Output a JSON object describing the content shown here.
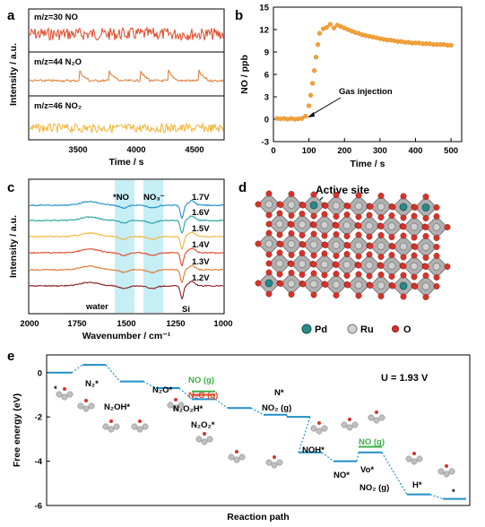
{
  "panels": {
    "a": {
      "letter": "a",
      "ylabel": "Intensity / a.u.",
      "xlabel": "Time / s",
      "xticks": [
        "3500",
        "4000",
        "4500"
      ],
      "traces": [
        {
          "label": "m/z=30 NO",
          "color": "#e04a2a"
        },
        {
          "label": "m/z=44 N₂O",
          "color": "#e07830"
        },
        {
          "label": "m/z=46 NO₂",
          "color": "#f0b43a"
        }
      ]
    },
    "b": {
      "letter": "b",
      "ylabel": "NO / ppb",
      "xlabel": "Time / s",
      "annotation": "Gas injection"
    },
    "c": {
      "letter": "c",
      "ylabel": "Intensity / a.u.",
      "xlabel": "Wavenumber / cm⁻¹",
      "band_labels": [
        "*NO",
        "NO₃⁻",
        "water",
        "Si"
      ],
      "xticks": [
        "2000",
        "1750",
        "1500",
        "1250",
        "1000"
      ]
    },
    "d": {
      "letter": "d",
      "title": "Active site",
      "legend": [
        {
          "label": "Pd",
          "color": "#2a8a8a"
        },
        {
          "label": "Ru",
          "color": "#c8c8c8"
        },
        {
          "label": "O",
          "color": "#d8332a"
        }
      ]
    },
    "e": {
      "letter": "e",
      "ylabel": "Free energy (eV)",
      "xlabel": "Reaction path",
      "potential": "U = 1.93 V",
      "yticks": [
        "0",
        "-2",
        "-4",
        "-6"
      ],
      "labels": {
        "star": "*",
        "n2": "N₂*",
        "n2oh": "N₂OH*",
        "n2o": "N₂O*",
        "n2o2h": "N₂O₂H*",
        "n2o2": "N₂O₂*",
        "no_g1": "NO (g)",
        "n2o_g": "N₂O (g)",
        "n_star": "N*",
        "no2_g1": "NO₂ (g)",
        "noh": "NOH*",
        "no_star": "NO*",
        "no_g2": "NO (g)",
        "vo": "Vo*",
        "no2_g2": "NO₂ (g)",
        "h_star": "H*",
        "end_star": "*"
      },
      "colors": {
        "main": "#1f8fc8",
        "green": "#3cb04a",
        "red": "#e0452a"
      }
    }
  },
  "chart_data": [
    {
      "panel": "a",
      "type": "line",
      "title": "",
      "xlabel": "Time / s",
      "ylabel": "Intensity / a.u.",
      "xlim": [
        3050,
        4800
      ],
      "series": [
        {
          "name": "m/z=30 NO",
          "description_values": "noisy flat baseline",
          "x": [
            3050,
            4800
          ],
          "y": [
            1,
            1
          ]
        },
        {
          "name": "m/z=44 N₂O",
          "x": [
            3520,
            3800,
            4080,
            4330,
            4600
          ],
          "y": [
            1,
            1,
            1,
            1,
            1
          ]
        },
        {
          "name": "m/z=46 NO₂",
          "x": [
            3050,
            4800
          ],
          "y": [
            1,
            1
          ]
        }
      ]
    },
    {
      "panel": "b",
      "type": "scatter",
      "xlabel": "Time / s",
      "ylabel": "NO / ppb",
      "xlim": [
        0,
        530
      ],
      "ylim": [
        -3,
        15
      ],
      "xticks": [
        0,
        100,
        200,
        300,
        400,
        500
      ],
      "yticks": [
        -3,
        0,
        3,
        6,
        9,
        12,
        15
      ],
      "series": [
        {
          "name": "",
          "x": [
            10,
            20,
            30,
            40,
            50,
            60,
            70,
            80,
            90,
            100,
            105,
            110,
            115,
            120,
            125,
            130,
            140,
            150,
            160,
            170,
            180,
            190,
            200,
            210,
            220,
            230,
            240,
            250,
            260,
            270,
            280,
            290,
            300,
            310,
            320,
            330,
            340,
            350,
            360,
            370,
            380,
            390,
            400,
            410,
            420,
            430,
            440,
            450,
            460,
            470,
            480,
            490,
            500
          ],
          "y": [
            0.1,
            0.05,
            0.1,
            0.0,
            0.1,
            0.0,
            0.05,
            0.1,
            0.4,
            1.8,
            3.2,
            4.8,
            6.5,
            8.3,
            10.0,
            11.5,
            12.1,
            12.3,
            12.7,
            12.2,
            12.6,
            12.4,
            12.2,
            12.0,
            11.8,
            11.6,
            11.5,
            11.3,
            11.2,
            11.1,
            11.0,
            10.9,
            10.8,
            10.7,
            10.6,
            10.6,
            10.5,
            10.4,
            10.4,
            10.3,
            10.3,
            10.2,
            10.2,
            10.2,
            10.1,
            10.1,
            10.1,
            10.0,
            10.0,
            10.0,
            10.0,
            9.9,
            9.9
          ]
        }
      ]
    },
    {
      "panel": "c",
      "type": "line",
      "xlabel": "Wavenumber / cm⁻¹",
      "ylabel": "Intensity / a.u.",
      "xlim": [
        2000,
        1000
      ],
      "series": [
        {
          "name": "1.7V",
          "color": "#1f8fc8"
        },
        {
          "name": "1.6V",
          "color": "#2aa0a0"
        },
        {
          "name": "1.5V",
          "color": "#f0b43a"
        },
        {
          "name": "1.4V",
          "color": "#e04a2a"
        },
        {
          "name": "1.3V",
          "color": "#e07830"
        },
        {
          "name": "1.2V",
          "color": "#8a1f1f"
        }
      ]
    },
    {
      "panel": "e",
      "type": "line",
      "xlabel": "Reaction path",
      "ylabel": "Free energy (eV)",
      "ylim": [
        -6,
        0.8
      ],
      "yticks": [
        0,
        -2,
        -4,
        -6
      ],
      "series": [
        {
          "name": "",
          "values": [
            0.0,
            0.35,
            -0.4,
            -0.7,
            -1.2,
            -1.6,
            -1.9,
            -2.0,
            -3.6,
            -4.0,
            -3.6,
            -5.5,
            -5.7
          ]
        }
      ]
    }
  ]
}
